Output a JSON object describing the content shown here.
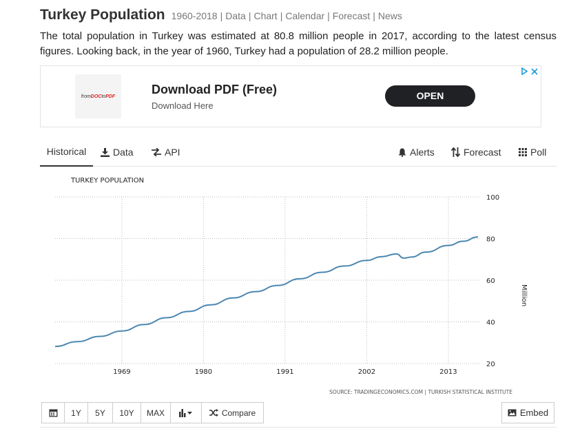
{
  "header": {
    "title": "Turkey Population",
    "range": "1960-2018",
    "links": [
      "Data",
      "Chart",
      "Calendar",
      "Forecast",
      "News"
    ]
  },
  "summary": "The total population in Turkey was estimated at 80.8 million people in 2017, according to the latest census figures. Looking back, in the year of 1960, Turkey had a population of 28.2 million people.",
  "ad": {
    "logo_text_a": "from",
    "logo_text_b": "DOC",
    "logo_text_c": "to",
    "logo_text_d": "PDF",
    "headline": "Download PDF (Free)",
    "subline": "Download Here",
    "cta": "OPEN",
    "accent": "#1a9ad6"
  },
  "tabs": {
    "historical": "Historical",
    "data": "Data",
    "api": "API",
    "alerts": "Alerts",
    "forecast": "Forecast",
    "poll": "Poll"
  },
  "toolbar": {
    "ranges": [
      "1Y",
      "5Y",
      "10Y",
      "MAX"
    ],
    "compare": "Compare",
    "embed": "Embed"
  },
  "chart_data": {
    "type": "line",
    "title": "TURKEY POPULATION",
    "ylabel": "Million",
    "xlabel": "",
    "source": "SOURCE: TRADINGECONOMICS.COM | TURKISH STATISTICAL INSTITUTE",
    "ylim": [
      20,
      100
    ],
    "yticks": [
      20,
      40,
      60,
      80,
      100
    ],
    "xlim": [
      1960,
      2017
    ],
    "xticks": [
      1969,
      1980,
      1991,
      2002,
      2013
    ],
    "line_color": "#4a86b0",
    "grid": true,
    "series": [
      {
        "name": "Turkey Population",
        "x": [
          1960,
          1963,
          1966,
          1969,
          1972,
          1975,
          1978,
          1981,
          1984,
          1987,
          1990,
          1993,
          1996,
          1999,
          2002,
          2004,
          2006,
          2007,
          2008,
          2010,
          2013,
          2015,
          2017
        ],
        "values": [
          28.2,
          30.5,
          33.0,
          35.6,
          38.7,
          42.0,
          45.0,
          48.2,
          51.5,
          54.5,
          57.5,
          60.7,
          63.8,
          66.8,
          69.5,
          71.3,
          72.6,
          70.6,
          71.1,
          73.5,
          76.7,
          78.7,
          80.8
        ]
      }
    ]
  }
}
